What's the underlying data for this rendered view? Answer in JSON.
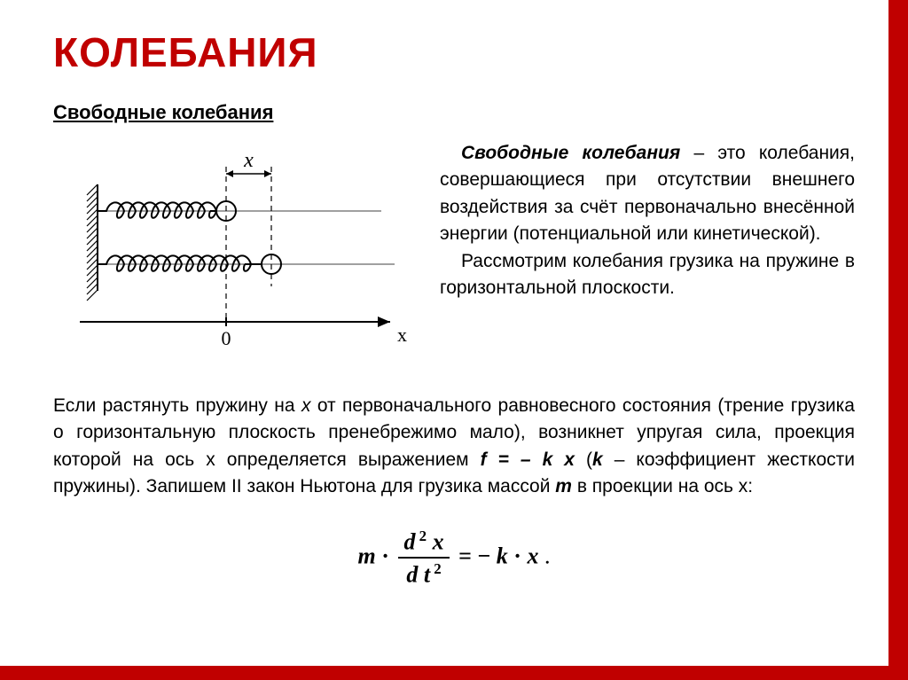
{
  "colors": {
    "accent": "#c00000",
    "text": "#000000",
    "background": "#ffffff"
  },
  "typography": {
    "title_fontsize": 46,
    "subtitle_fontsize": 22,
    "body_fontsize": 21,
    "equation_fontsize": 26
  },
  "title": "КОЛЕБАНИЯ",
  "subtitle": "Свободные колебания",
  "definition": {
    "term": "Свободные колебания",
    "rest1": " – это колебания, совершающиеся при отсутствии внешнего воздействия за счёт первоначально внесённой энергии (потенциальной или кинетической).",
    "p2": "Рассмотрим колебания грузика на пружине в горизонтальной плоскости."
  },
  "body": {
    "pre": "Если растянуть пружину на ",
    "x": "x",
    "mid1": " от первоначального равновесного состояния (трение грузика о горизонтальную плоскость пренебрежимо мало), возникнет упругая сила, проекция которой на ось х определяется выражением ",
    "f_expr": "f = – k x",
    "mid2": " (",
    "k": "k",
    "mid3": " – коэффициент жесткости пружины). Запишем II закон Ньютона для грузика массой ",
    "m": "m",
    "mid4": " в проекции на ось х:"
  },
  "equation": {
    "lhs_m": "m",
    "dot": "·",
    "num": "d ² x",
    "den": "d t ²",
    "eq": "= −",
    "k": "k",
    "dot2": "·",
    "x": "x",
    "period": " ."
  },
  "diagram": {
    "type": "physics-diagram",
    "x_label": "x",
    "origin_label": "0",
    "axis_label": "x",
    "stroke": "#000000",
    "stroke_width": 2,
    "spring": {
      "coils_short": 9,
      "coils_long": 12,
      "coil_radius": 8
    },
    "mass_radius": 11,
    "hatch_spacing": 7
  }
}
